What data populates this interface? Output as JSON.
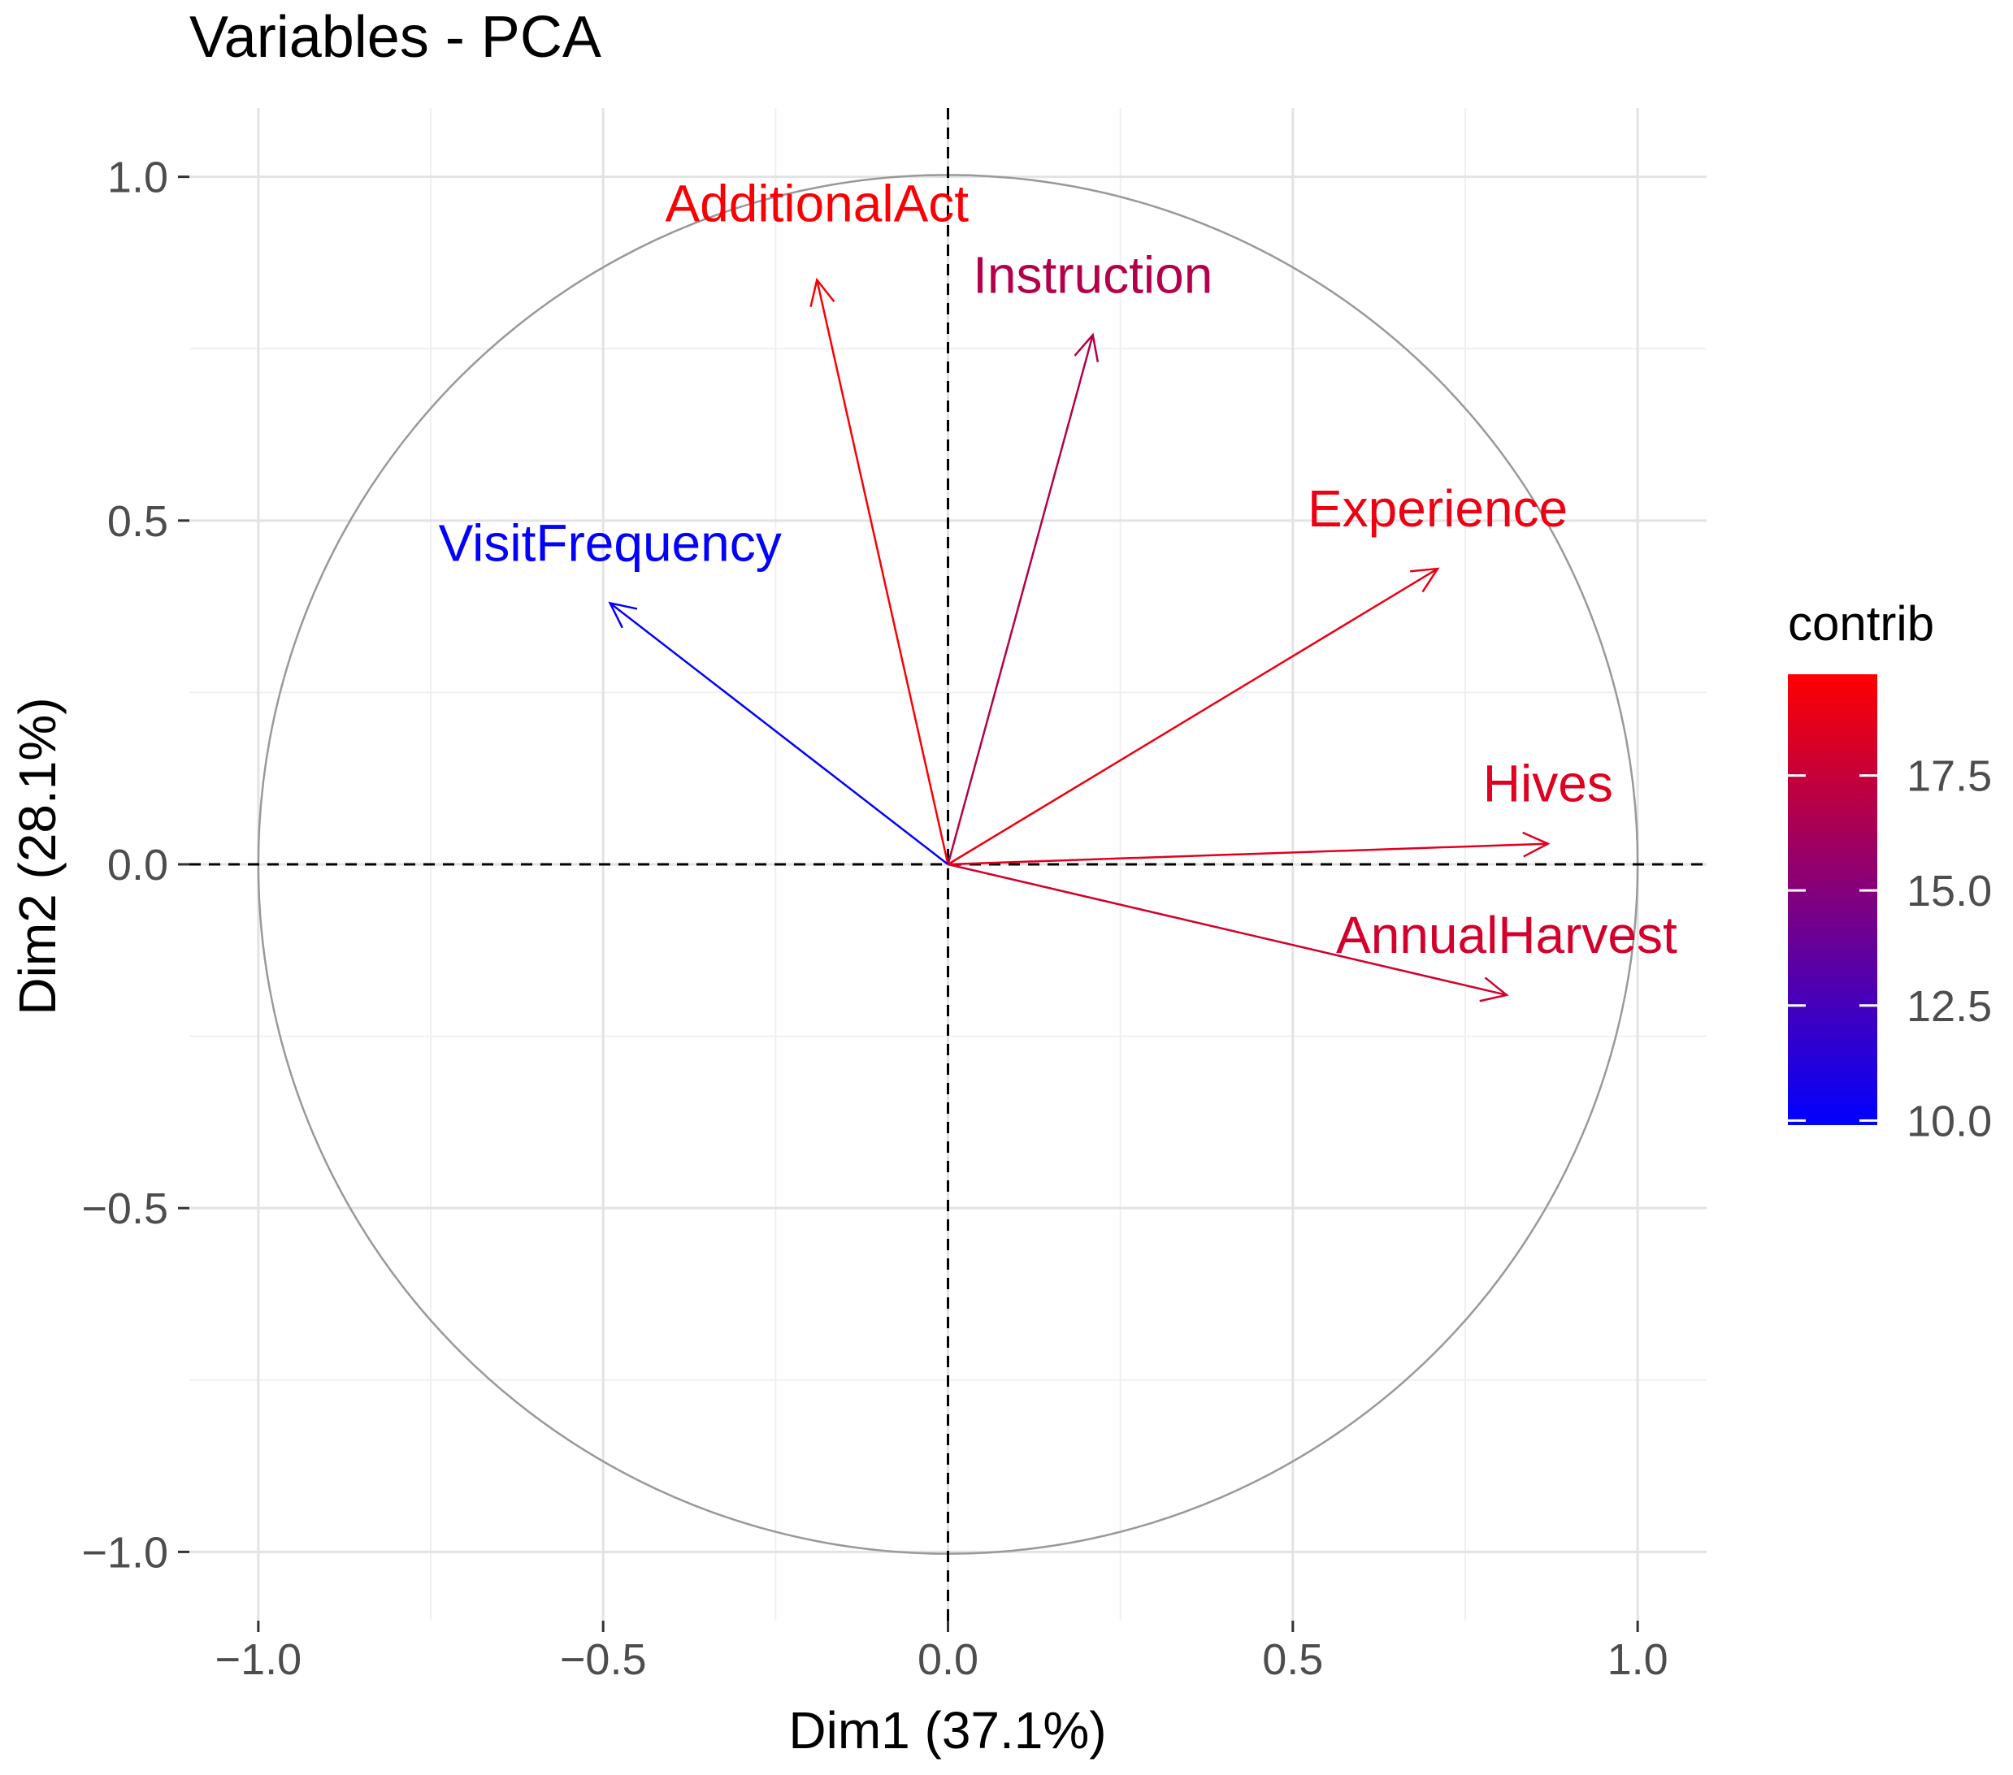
{
  "chart_data": {
    "type": "scatter",
    "title": "Variables - PCA",
    "xlabel": "Dim1 (37.1%)",
    "ylabel": "Dim2 (28.1%)",
    "xlim": [
      -1.1,
      1.1
    ],
    "ylim": [
      -1.1,
      1.1
    ],
    "x_ticks": [
      -1.0,
      -0.5,
      0.0,
      0.5,
      1.0
    ],
    "x_tick_labels": [
      "−1.0",
      "−0.5",
      "0.0",
      "0.5",
      "1.0"
    ],
    "y_ticks": [
      -1.0,
      -0.5,
      0.0,
      0.5,
      1.0
    ],
    "y_tick_labels": [
      "−1.0",
      "−0.5",
      "0.0",
      "0.5",
      "1.0"
    ],
    "grid": true,
    "correlation_circle_radius": 1.0,
    "variables": [
      {
        "name": "AdditionalAct",
        "x": -0.19,
        "y": 0.85,
        "contrib": 19.5
      },
      {
        "name": "Instruction",
        "x": 0.21,
        "y": 0.77,
        "contrib": 16.8
      },
      {
        "name": "VisitFrequency",
        "x": -0.49,
        "y": 0.38,
        "contrib": 10.0
      },
      {
        "name": "Experience",
        "x": 0.71,
        "y": 0.43,
        "contrib": 19.0
      },
      {
        "name": "Hives",
        "x": 0.87,
        "y": 0.03,
        "contrib": 18.5
      },
      {
        "name": "AnnualHarvest",
        "x": 0.81,
        "y": -0.19,
        "contrib": 18.0
      }
    ],
    "legend": {
      "title": "contrib",
      "position": "right",
      "range": [
        9.9,
        19.7
      ],
      "ticks": [
        10.0,
        12.5,
        15.0,
        17.5
      ],
      "tick_labels": [
        "10.0",
        "12.5",
        "15.0",
        "17.5"
      ],
      "low_color": "#0000ff",
      "high_color": "#ff0000"
    }
  }
}
